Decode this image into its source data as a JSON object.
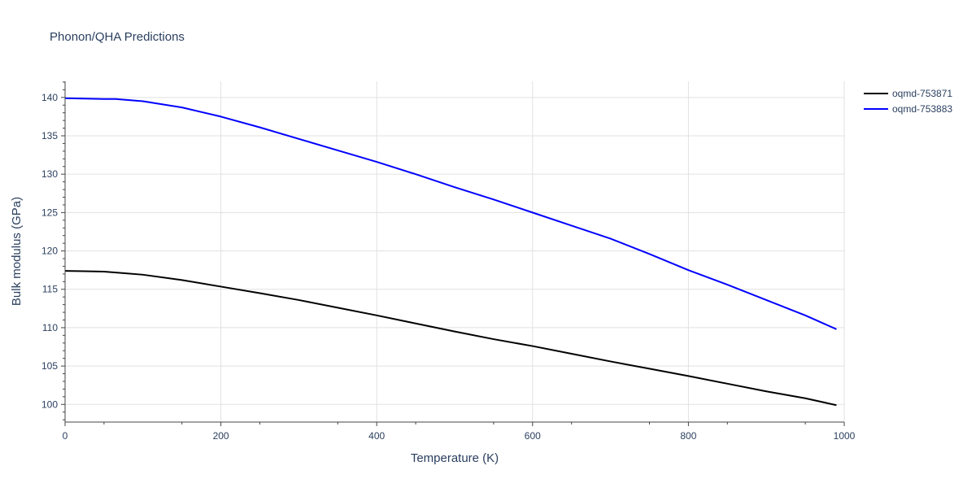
{
  "chart_data": {
    "type": "line",
    "title": "Phonon/QHA Predictions",
    "xlabel": "Temperature (K)",
    "ylabel": "Bulk modulus (GPa)",
    "xlim": [
      0,
      1000
    ],
    "ylim": [
      97.7,
      142.1
    ],
    "xticks": [
      0,
      200,
      400,
      600,
      800,
      1000
    ],
    "xtick_labels": [
      "0",
      "200",
      "400",
      "600",
      "800",
      "1000"
    ],
    "yticks": [
      100,
      105,
      110,
      115,
      120,
      125,
      130,
      135,
      140
    ],
    "ytick_labels": [
      "100",
      "105",
      "110",
      "115",
      "120",
      "125",
      "130",
      "135",
      "140"
    ],
    "grid": true,
    "legend_position": "top-right",
    "series": [
      {
        "name": "oqmd-753871",
        "color": "#000000",
        "x": [
          0,
          25,
          50,
          75,
          100,
          150,
          200,
          250,
          300,
          350,
          400,
          450,
          500,
          550,
          600,
          650,
          700,
          750,
          800,
          850,
          900,
          950,
          990
        ],
        "y": [
          117.4,
          117.35,
          117.3,
          117.1,
          116.9,
          116.2,
          115.35,
          114.5,
          113.6,
          112.6,
          111.6,
          110.55,
          109.5,
          108.5,
          107.6,
          106.6,
          105.6,
          104.65,
          103.7,
          102.7,
          101.7,
          100.8,
          99.9
        ]
      },
      {
        "name": "oqmd-753883",
        "color": "#0000ff",
        "x": [
          0,
          25,
          50,
          65,
          100,
          150,
          200,
          250,
          300,
          350,
          400,
          450,
          500,
          550,
          600,
          650,
          700,
          750,
          800,
          850,
          900,
          950,
          990
        ],
        "y": [
          139.9,
          139.85,
          139.8,
          139.8,
          139.5,
          138.7,
          137.5,
          136.1,
          134.6,
          133.1,
          131.6,
          130.0,
          128.3,
          126.7,
          125.0,
          123.3,
          121.6,
          119.6,
          117.5,
          115.6,
          113.6,
          111.6,
          109.8
        ]
      }
    ]
  }
}
